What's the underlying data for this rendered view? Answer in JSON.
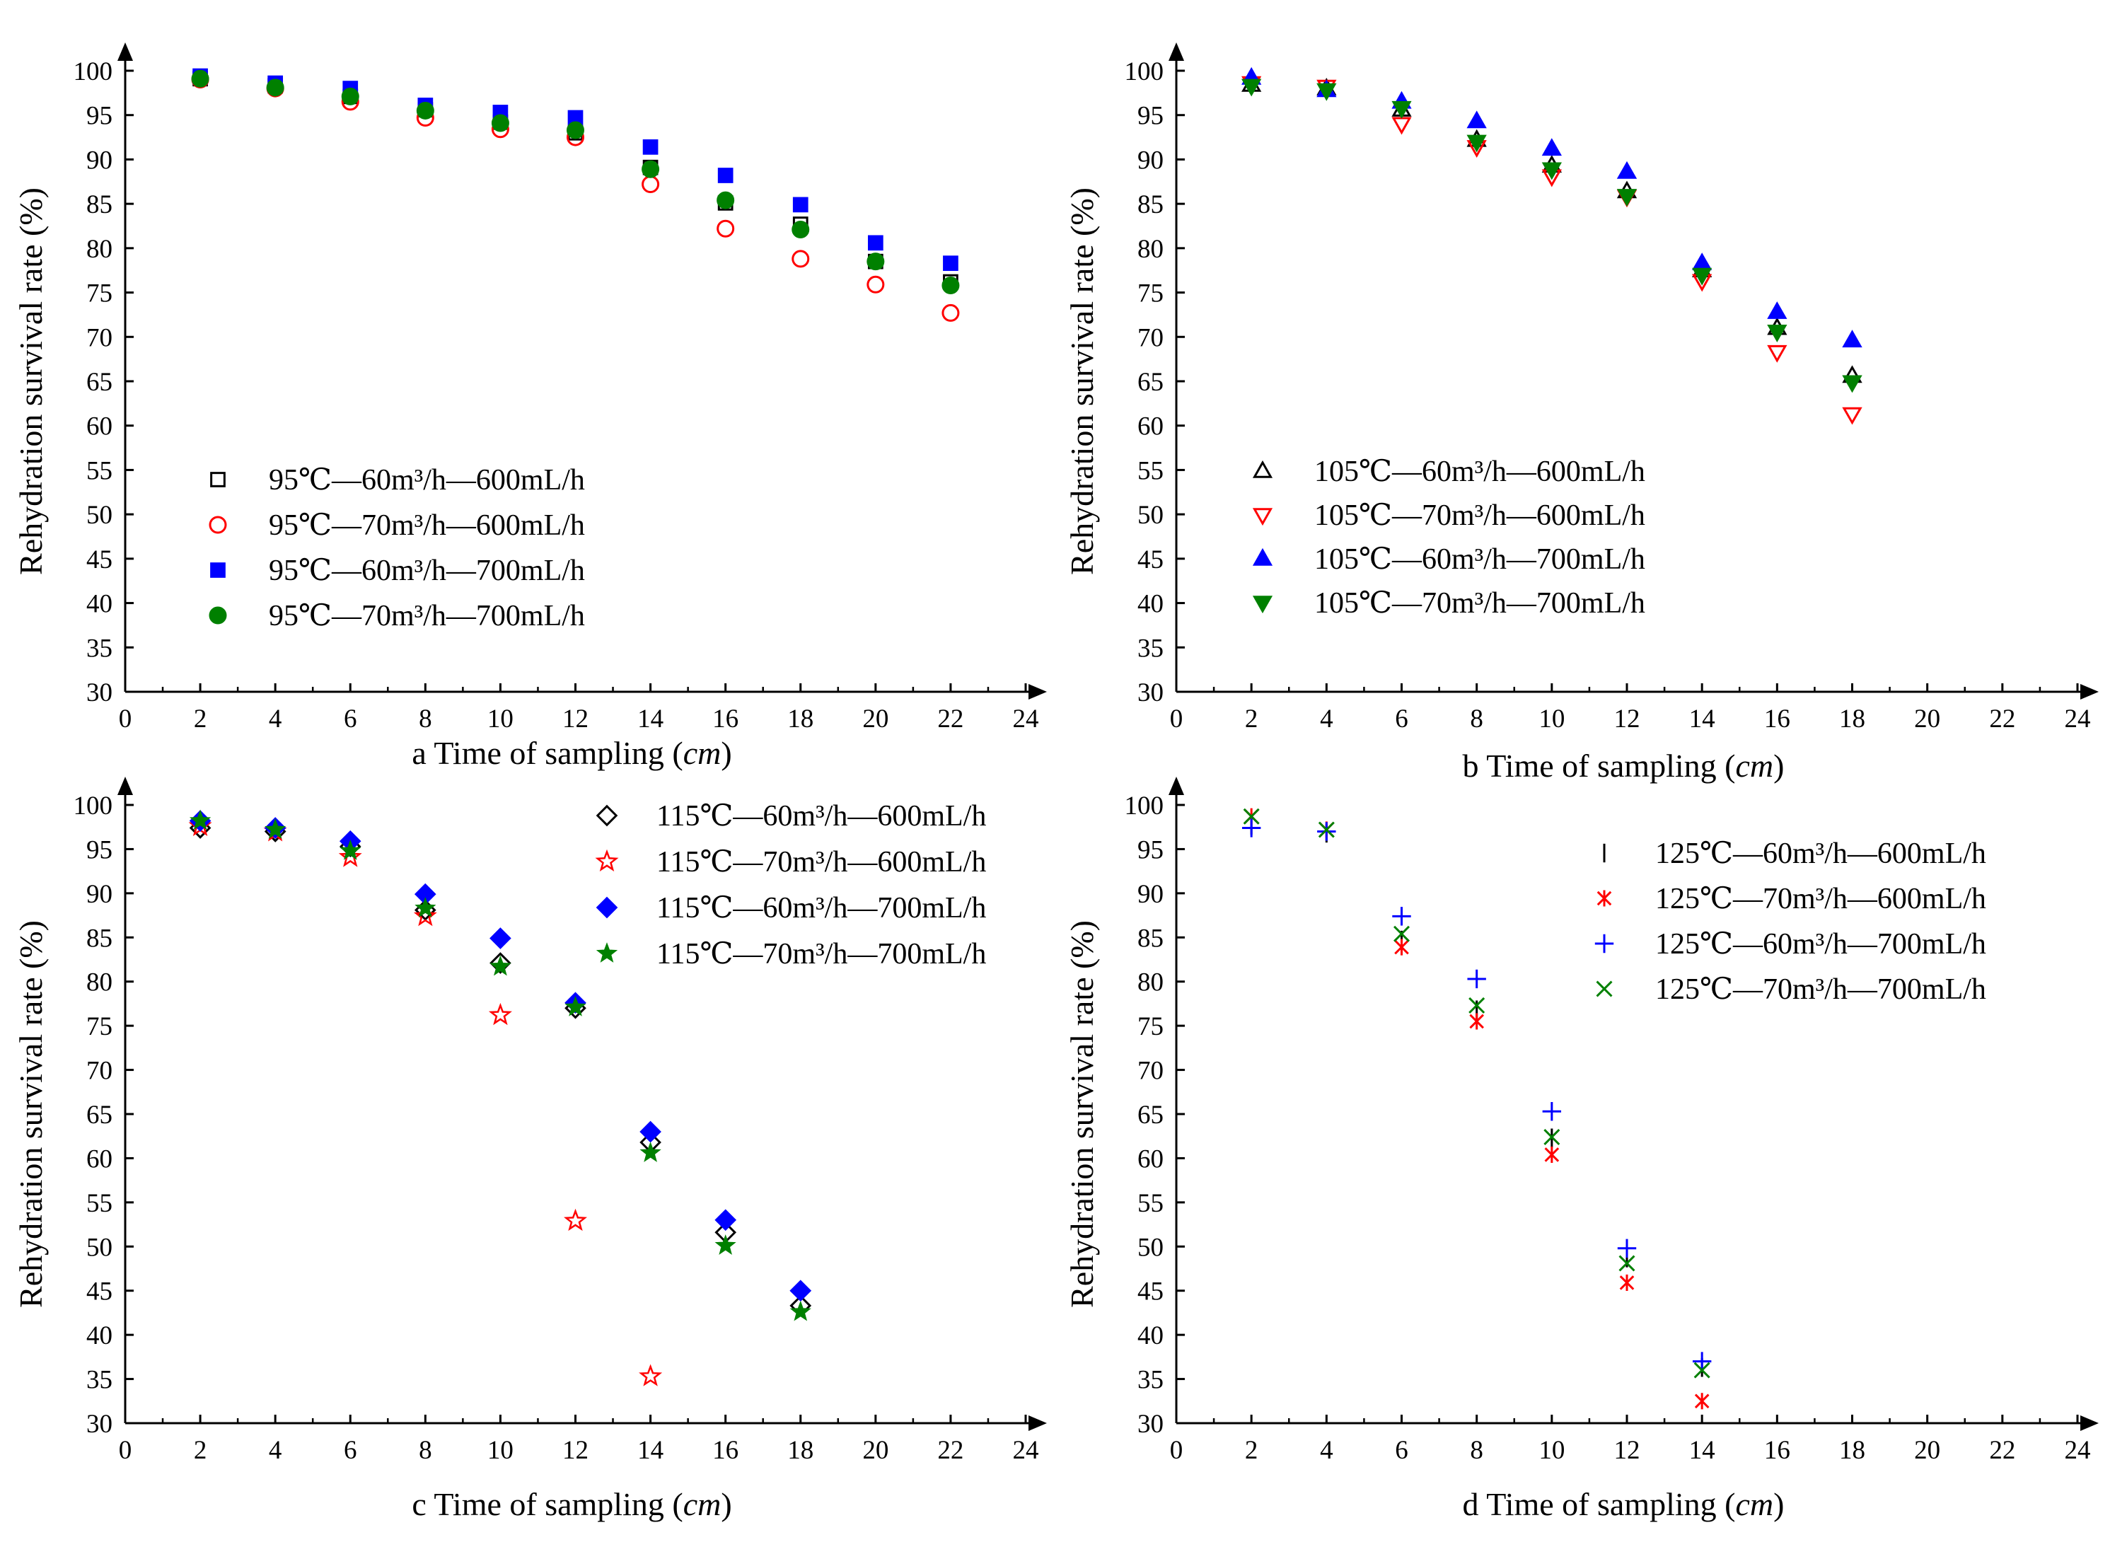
{
  "chart_data": [
    {
      "panel": "a",
      "type": "scatter",
      "xlabel_prefix": "a Time of sampling (",
      "xlabel_unit": "cm",
      "xlabel_suffix": ")",
      "ylabel": "Rehydration survival rate (%)",
      "xlim": [
        0,
        24
      ],
      "ylim": [
        30,
        100
      ],
      "xticks": [
        0,
        2,
        4,
        6,
        8,
        10,
        12,
        14,
        16,
        18,
        20,
        22,
        24
      ],
      "yticks": [
        30,
        35,
        40,
        45,
        50,
        55,
        60,
        65,
        70,
        75,
        80,
        85,
        90,
        95,
        100
      ],
      "legend_position": "left-middle",
      "series": [
        {
          "name": "95℃—60m³/h—600mL/h",
          "marker": "square-open",
          "color": "#000000",
          "x": [
            2,
            4,
            6,
            8,
            10,
            12,
            14,
            16,
            18,
            20,
            22
          ],
          "y": [
            99.1,
            98.3,
            97.1,
            95.6,
            94.2,
            93.0,
            89.1,
            85.1,
            82.7,
            78.5,
            76.2
          ]
        },
        {
          "name": "95℃—70m³/h—600mL/h",
          "marker": "circle-open",
          "color": "#ff0000",
          "x": [
            2,
            4,
            6,
            8,
            10,
            12,
            14,
            16,
            18,
            20,
            22
          ],
          "y": [
            99.0,
            98.0,
            96.5,
            94.7,
            93.4,
            92.5,
            87.2,
            82.2,
            78.8,
            75.9,
            72.7
          ]
        },
        {
          "name": "95℃—60m³/h—700mL/h",
          "marker": "square",
          "color": "#0000ff",
          "x": [
            2,
            4,
            6,
            8,
            10,
            12,
            14,
            16,
            18,
            20,
            22
          ],
          "y": [
            99.4,
            98.6,
            98.0,
            96.1,
            95.3,
            94.7,
            91.4,
            88.2,
            84.9,
            80.6,
            78.3
          ]
        },
        {
          "name": "95℃—70m³/h—700mL/h",
          "marker": "circle",
          "color": "#008000",
          "x": [
            2,
            4,
            6,
            8,
            10,
            12,
            14,
            16,
            18,
            20,
            22
          ],
          "y": [
            99.1,
            98.1,
            97.1,
            95.5,
            94.1,
            93.3,
            88.9,
            85.4,
            82.1,
            78.5,
            75.8
          ]
        }
      ]
    },
    {
      "panel": "b",
      "type": "scatter",
      "xlabel_prefix": "b Time of sampling (",
      "xlabel_unit": "cm",
      "xlabel_suffix": ")",
      "ylabel": "Rehydration survival rate (%)",
      "xlim": [
        0,
        24
      ],
      "ylim": [
        30,
        100
      ],
      "xticks": [
        0,
        2,
        4,
        6,
        8,
        10,
        12,
        14,
        16,
        18,
        20,
        22,
        24
      ],
      "yticks": [
        30,
        35,
        40,
        45,
        50,
        55,
        60,
        65,
        70,
        75,
        80,
        85,
        90,
        95,
        100
      ],
      "legend_position": "left-middle",
      "series": [
        {
          "name": "105℃—60m³/h—600mL/h",
          "marker": "triangle-open",
          "color": "#000000",
          "x": [
            2,
            4,
            6,
            8,
            10,
            12,
            14,
            16,
            18
          ],
          "y": [
            98.4,
            98.0,
            95.6,
            92.2,
            89.3,
            86.4,
            77.5,
            71.0,
            65.6
          ]
        },
        {
          "name": "105℃—70m³/h—600mL/h",
          "marker": "triangle-down-open",
          "color": "#ff0000",
          "x": [
            2,
            4,
            6,
            8,
            10,
            12,
            14,
            16,
            18
          ],
          "y": [
            98.6,
            98.2,
            94.0,
            91.4,
            88.1,
            85.8,
            76.3,
            68.3,
            61.3
          ]
        },
        {
          "name": "105℃—60m³/h—700mL/h",
          "marker": "triangle",
          "color": "#0000ff",
          "x": [
            2,
            4,
            6,
            8,
            10,
            12,
            14,
            16,
            18
          ],
          "y": [
            99.2,
            97.8,
            96.5,
            94.3,
            91.2,
            88.6,
            78.3,
            72.8,
            69.6
          ]
        },
        {
          "name": "105℃—70m³/h—700mL/h",
          "marker": "triangle-down",
          "color": "#008000",
          "x": [
            2,
            4,
            6,
            8,
            10,
            12,
            14,
            16,
            18
          ],
          "y": [
            98.3,
            97.8,
            95.8,
            92.0,
            88.9,
            85.9,
            77.0,
            70.6,
            64.9
          ]
        }
      ]
    },
    {
      "panel": "c",
      "type": "scatter",
      "xlabel_prefix": "c Time of sampling (",
      "xlabel_unit": "cm",
      "xlabel_suffix": ")",
      "ylabel": "Rehydration survival rate (%)",
      "xlim": [
        0,
        24
      ],
      "ylim": [
        30,
        100
      ],
      "xticks": [
        0,
        2,
        4,
        6,
        8,
        10,
        12,
        14,
        16,
        18,
        20,
        22,
        24
      ],
      "yticks": [
        30,
        35,
        40,
        45,
        50,
        55,
        60,
        65,
        70,
        75,
        80,
        85,
        90,
        95,
        100
      ],
      "legend_position": "top-right",
      "series": [
        {
          "name": "115℃—60m³/h—600mL/h",
          "marker": "diamond-open",
          "color": "#000000",
          "x": [
            2,
            4,
            6,
            8,
            10,
            12,
            14,
            16,
            18
          ],
          "y": [
            97.4,
            97.0,
            95.3,
            88.1,
            82.1,
            77.0,
            61.8,
            51.6,
            43.3
          ]
        },
        {
          "name": "115℃—70m³/h—600mL/h",
          "marker": "star-open",
          "color": "#ff0000",
          "x": [
            2,
            4,
            6,
            8,
            10,
            12,
            14
          ],
          "y": [
            97.6,
            97.0,
            94.1,
            87.4,
            76.2,
            52.9,
            35.3
          ]
        },
        {
          "name": "115℃—60m³/h—700mL/h",
          "marker": "diamond",
          "color": "#0000ff",
          "x": [
            2,
            4,
            6,
            8,
            10,
            12,
            14,
            16,
            18
          ],
          "y": [
            98.2,
            97.4,
            95.9,
            89.9,
            84.9,
            77.6,
            63.0,
            53.0,
            45.0
          ]
        },
        {
          "name": "115℃—70m³/h—700mL/h",
          "marker": "star",
          "color": "#008000",
          "x": [
            2,
            4,
            6,
            8,
            10,
            12,
            14,
            16,
            18
          ],
          "y": [
            98.2,
            97.2,
            94.8,
            88.3,
            81.7,
            77.1,
            60.6,
            50.1,
            42.6
          ]
        }
      ]
    },
    {
      "panel": "d",
      "type": "scatter",
      "xlabel_prefix": "d Time of sampling (",
      "xlabel_unit": "cm",
      "xlabel_suffix": ")",
      "ylabel": "Rehydration survival rate (%)",
      "xlim": [
        0,
        24
      ],
      "ylim": [
        30,
        100
      ],
      "xticks": [
        0,
        2,
        4,
        6,
        8,
        10,
        12,
        14,
        16,
        18,
        20,
        22,
        24
      ],
      "yticks": [
        30,
        35,
        40,
        45,
        50,
        55,
        60,
        65,
        70,
        75,
        80,
        85,
        90,
        95,
        100
      ],
      "legend_position": "top-right",
      "series": [
        {
          "name": "125℃—60m³/h—600mL/h",
          "marker": "vline",
          "color": "#000000",
          "x": [
            2,
            4,
            6,
            8,
            10,
            12,
            14
          ],
          "y": [
            97.7,
            96.8,
            84.7,
            76.8,
            62.3,
            48.7,
            36.3
          ]
        },
        {
          "name": "125℃—70m³/h—600mL/h",
          "marker": "asterisk",
          "color": "#ff0000",
          "x": [
            2,
            4,
            6,
            8,
            10,
            12,
            14
          ],
          "y": [
            98.7,
            97.2,
            83.9,
            75.5,
            60.4,
            45.9,
            32.5
          ]
        },
        {
          "name": "125℃—60m³/h—700mL/h",
          "marker": "plus",
          "color": "#0000ff",
          "x": [
            2,
            4,
            6,
            8,
            10,
            12,
            14
          ],
          "y": [
            97.4,
            97.0,
            87.4,
            80.3,
            65.3,
            49.8,
            37.0
          ]
        },
        {
          "name": "125℃—70m³/h—700mL/h",
          "marker": "x",
          "color": "#008000",
          "x": [
            2,
            4,
            6,
            8,
            10,
            12,
            14
          ],
          "y": [
            98.7,
            97.2,
            85.4,
            77.3,
            62.4,
            48.1,
            36.0
          ]
        }
      ]
    }
  ]
}
